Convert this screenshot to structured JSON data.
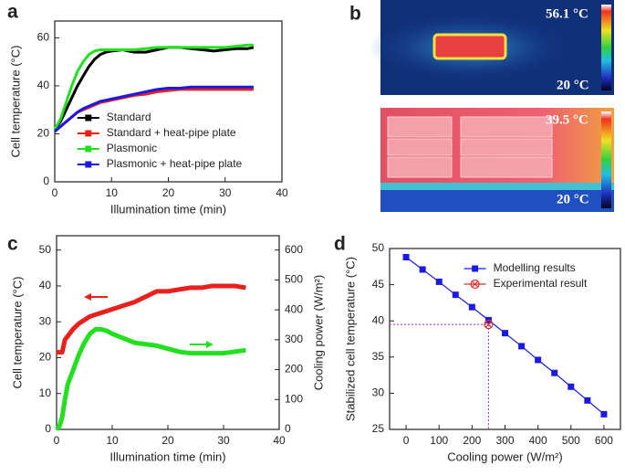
{
  "panel_labels": [
    "a",
    "b",
    "c",
    "d"
  ],
  "thermal_images": [
    {
      "max_label": "56.1 °C",
      "min_label": "20 °C"
    },
    {
      "max_label": "39.5 °C",
      "min_label": "20 °C"
    }
  ],
  "chart_data": [
    {
      "type": "line",
      "x_label": "Illumination time (min)",
      "y_label": "Cell temperature (°C)",
      "x": [
        0,
        1,
        2,
        3,
        4,
        5,
        6,
        7,
        8,
        9,
        10,
        12,
        14,
        16,
        18,
        20,
        22,
        24,
        26,
        28,
        30,
        32,
        34,
        35
      ],
      "series": [
        {
          "name": "Standard",
          "color": "#000000",
          "values": [
            22,
            25,
            30,
            35,
            40,
            44,
            48,
            51,
            53,
            54,
            54.5,
            55,
            54,
            54,
            55,
            56,
            56,
            55.5,
            55,
            54.5,
            55,
            55.5,
            55.5,
            56
          ]
        },
        {
          "name": "Standard + heat-pipe plate",
          "color": "#e8211d",
          "values": [
            21,
            23,
            25,
            27,
            29,
            30,
            31,
            32,
            33,
            33.5,
            34,
            35,
            36,
            36.5,
            37.5,
            38,
            38.5,
            38.5,
            38.5,
            38.5,
            38.5,
            38.5,
            38.5,
            38.5
          ]
        },
        {
          "name": "Plasmonic",
          "color": "#22e01e",
          "values": [
            22,
            26,
            33,
            40,
            46,
            50,
            53,
            54.5,
            55,
            55,
            55,
            55,
            55,
            55.5,
            56,
            56,
            56,
            56,
            56,
            56,
            56,
            56.5,
            57,
            57
          ]
        },
        {
          "name": "Plasmonic + heat-pipe plate",
          "color": "#1a1ae0",
          "values": [
            21,
            23,
            25,
            27,
            29,
            30.5,
            31.5,
            32.5,
            33.5,
            34,
            34.5,
            35.5,
            36.5,
            37.5,
            38.5,
            39,
            39,
            39.5,
            39.5,
            39.5,
            39.5,
            39.5,
            39.5,
            39.5
          ]
        }
      ],
      "xlim": [
        0,
        40
      ],
      "xticks": [
        0,
        10,
        20,
        30,
        40
      ],
      "ylim": [
        0,
        67
      ],
      "yticks": [
        0,
        20,
        40,
        60
      ],
      "legend": "lower right"
    },
    {
      "type": "line",
      "x_label": "Illumination time (min)",
      "y_label": "Cell temperature (°C)",
      "y2_label": "Cooling power (W/m²)",
      "x": [
        0,
        0.5,
        1,
        1.5,
        2,
        3,
        4,
        5,
        6,
        7,
        8,
        9,
        10,
        12,
        14,
        16,
        18,
        20,
        22,
        24,
        26,
        28,
        30,
        32,
        34
      ],
      "series": [
        {
          "color": "#e8211d",
          "values": [
            21.5,
            21.5,
            21.5,
            25,
            26,
            28,
            29.5,
            30.5,
            31.5,
            32,
            32.5,
            33,
            33.5,
            34.5,
            35.5,
            37,
            38.5,
            38.5,
            39,
            39.5,
            39.5,
            40,
            40,
            40,
            39.5
          ]
        },
        {
          "color": "#22e01e",
          "axis": "y2",
          "values": [
            0,
            10,
            40,
            100,
            150,
            200,
            250,
            290,
            320,
            335,
            335,
            330,
            320,
            305,
            290,
            285,
            280,
            270,
            260,
            255,
            255,
            255,
            255,
            260,
            265
          ]
        }
      ],
      "xlim": [
        0,
        40
      ],
      "xticks": [
        0,
        10,
        20,
        30,
        40
      ],
      "ylim": [
        0,
        54
      ],
      "yticks": [
        0,
        10,
        20,
        30,
        40,
        50
      ],
      "y2lim": [
        0,
        648
      ],
      "y2ticks": [
        0,
        100,
        200,
        300,
        400,
        500,
        600
      ]
    },
    {
      "type": "line",
      "x_label": "Cooling power (W/m²)",
      "y_label": "Stabilized cell temperature (°C)",
      "x": [
        0,
        50,
        100,
        150,
        200,
        250,
        300,
        350,
        400,
        450,
        500,
        550,
        600
      ],
      "series": [
        {
          "name": "Modelling results",
          "color": "#1a1ae0",
          "marker": "square",
          "values": [
            48.8,
            47.1,
            45.4,
            43.6,
            41.9,
            40.1,
            38.3,
            36.5,
            34.6,
            32.8,
            30.9,
            29.0,
            27.1
          ]
        },
        {
          "name": "Experimental result",
          "color": "#e03030",
          "marker": "x-circle",
          "x": [
            250
          ],
          "values": [
            39.5
          ]
        }
      ],
      "xlim": [
        -50,
        650
      ],
      "xticks": [
        0,
        100,
        200,
        300,
        400,
        500,
        600
      ],
      "ylim": [
        25,
        50
      ],
      "yticks": [
        25,
        30,
        35,
        40,
        45,
        50
      ],
      "legend": "upper right"
    }
  ]
}
